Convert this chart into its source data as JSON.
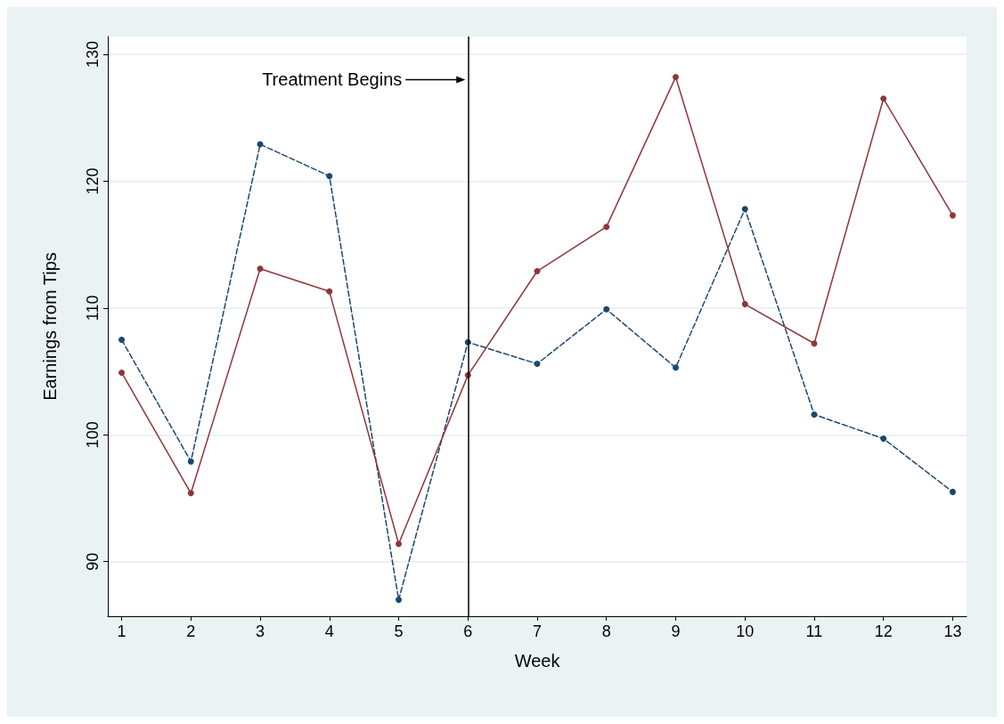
{
  "chart_data": {
    "type": "line",
    "xlabel": "Week",
    "ylabel": "Earnings from Tips",
    "x": [
      1,
      2,
      3,
      4,
      5,
      6,
      7,
      8,
      9,
      10,
      11,
      12,
      13
    ],
    "series": [
      {
        "color": "#1a476f",
        "line_style": "dashed",
        "values": [
          107.5,
          97.9,
          122.9,
          120.4,
          87.0,
          107.3,
          105.6,
          109.9,
          105.3,
          117.8,
          101.6,
          99.7,
          95.5
        ]
      },
      {
        "color": "#90353b",
        "line_style": "solid",
        "values": [
          104.9,
          95.4,
          113.1,
          111.3,
          91.4,
          104.7,
          112.9,
          116.4,
          128.2,
          110.3,
          107.2,
          126.5,
          117.3
        ]
      }
    ],
    "xlim": [
      0.8,
      13.2
    ],
    "xticks": [
      1,
      2,
      3,
      4,
      5,
      6,
      7,
      8,
      9,
      10,
      11,
      12,
      13
    ],
    "ylim": [
      85.7,
      131.4
    ],
    "yticks": [
      90,
      100,
      110,
      120,
      130
    ],
    "ref_lines": [
      {
        "axis": "x",
        "value": 6,
        "color": "#000000",
        "line_style": "solid"
      }
    ],
    "annotations": [
      {
        "text": "Treatment Begins",
        "x": 6,
        "y": 128
      }
    ],
    "grid": "y",
    "marker": "circle"
  }
}
